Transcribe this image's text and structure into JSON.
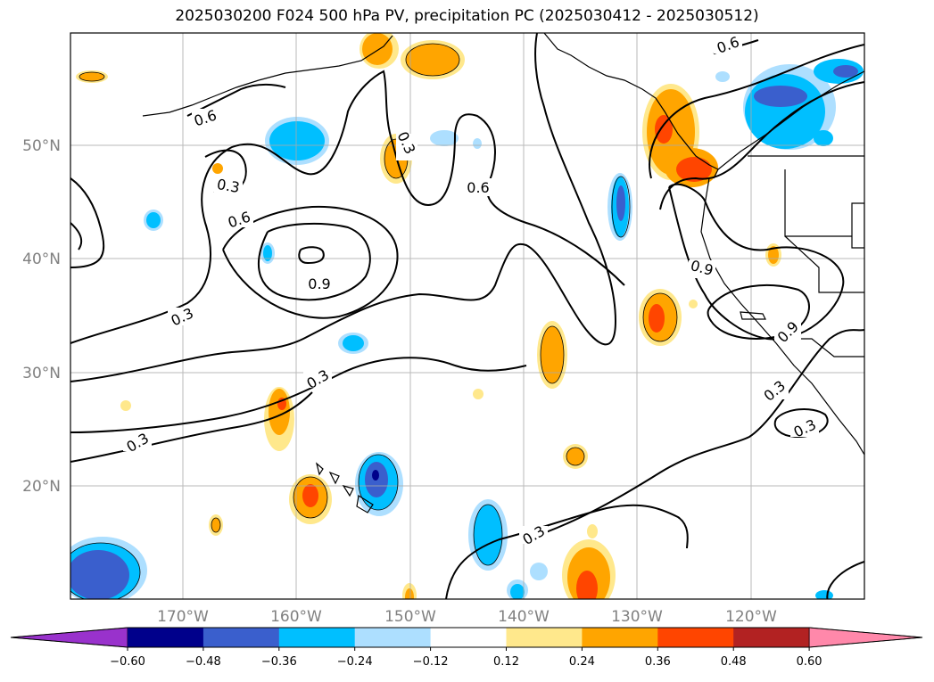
{
  "title": "2025030200 F024 500 hPa PV, precipitation PC (2025030412 - 2025030512)",
  "lat_labels": [
    "50°N",
    "40°N",
    "30°N",
    "20°N"
  ],
  "lon_labels": [
    "170°W",
    "160°W",
    "150°W",
    "140°W",
    "130°W",
    "120°W"
  ],
  "contour_labels": [
    "0.6",
    "0.6",
    "0.6",
    "0.6",
    "0.3",
    "0.3",
    "0.3",
    "0.3",
    "0.3",
    "0.3",
    "0.3",
    "0.3",
    "0.9",
    "0.9",
    "0.9"
  ],
  "colorbar": {
    "ticks": [
      "−0.60",
      "−0.48",
      "−0.36",
      "−0.24",
      "−0.12",
      "0.12",
      "0.24",
      "0.36",
      "0.48",
      "0.60"
    ],
    "colors": [
      "#9932CC",
      "#00008B",
      "#3A5FCD",
      "#00BFFF",
      "#ADDFFF",
      "#FFFFFF",
      "#FFE88C",
      "#FFA500",
      "#FF4500",
      "#B22222",
      "#FF88AA"
    ]
  }
}
